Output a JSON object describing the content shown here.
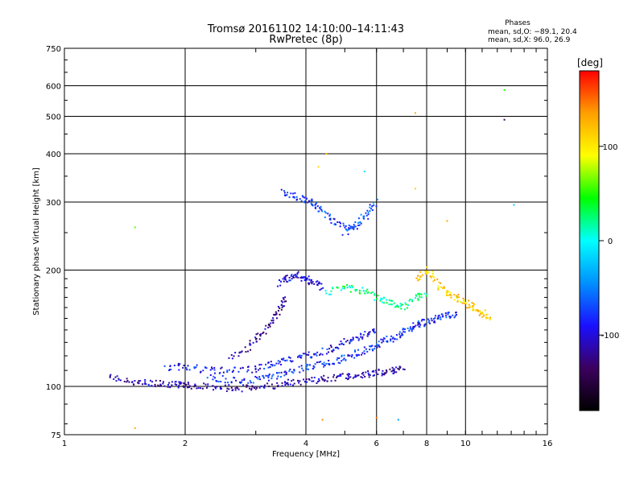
{
  "chart_data": {
    "type": "scatter",
    "title": "Tromsø 20161102 14:10:00–14:11:43",
    "subtitle": "RwPretec (8p)",
    "stats": {
      "heading": "Phases",
      "line_o": "mean, sd,O: −89.1, 20.4",
      "line_x": "mean, sd,X:  96.0, 26.9"
    },
    "xlabel": "Frequency [MHz]",
    "ylabel": "Stationary phase Virtual Height [km]",
    "x_scale": "log",
    "y_scale": "log",
    "xlim": [
      1,
      16
    ],
    "ylim": [
      75,
      750
    ],
    "x_ticks": [
      1,
      2,
      4,
      6,
      8,
      10,
      16
    ],
    "x_tick_labels": [
      "1",
      "2",
      "4",
      "6",
      "8",
      "10",
      "16"
    ],
    "y_ticks": [
      75,
      100,
      200,
      300,
      400,
      500,
      600,
      750
    ],
    "y_tick_labels": [
      "75",
      "100",
      "200",
      "300",
      "400",
      "500",
      "600",
      "750"
    ],
    "grid": true,
    "colorbar": {
      "label": "[deg]",
      "range": [
        -180,
        180
      ],
      "ticks": [
        100,
        0,
        -100
      ],
      "tick_labels": [
        "100",
        "0",
        "-100"
      ],
      "colors": [
        "#000000",
        "#3c0060",
        "#1a10ff",
        "#0090ff",
        "#00ffff",
        "#00ff00",
        "#ffff00",
        "#ffa000",
        "#ff0000"
      ]
    },
    "traces": [
      {
        "f": [
          1.3,
          1.45,
          1.6,
          1.75,
          1.9,
          2.0,
          2.2,
          2.5,
          2.8,
          3.1,
          3.5,
          3.8,
          4.2,
          4.6,
          5.0,
          5.4,
          5.8,
          6.2,
          6.6,
          7.0
        ],
        "h": [
          106,
          103,
          102,
          102,
          101,
          101,
          100,
          99,
          99,
          100,
          101,
          103,
          104,
          105,
          106,
          107,
          108,
          109,
          110,
          111
        ],
        "phase": -110
      },
      {
        "f": [
          1.8,
          2.0,
          2.3,
          2.6,
          3.0,
          3.3,
          3.6,
          4.0,
          4.4,
          4.8,
          5.2,
          5.6,
          6.0
        ],
        "h": [
          111,
          113,
          110,
          110,
          111,
          114,
          117,
          120,
          123,
          127,
          132,
          136,
          140
        ],
        "phase": -90
      },
      {
        "f": [
          2.3,
          2.6,
          3.0,
          3.3,
          3.6,
          4.0,
          4.4,
          4.8,
          5.2,
          5.6,
          6.0,
          6.4,
          6.8,
          7.2,
          7.6,
          8.0,
          8.5,
          9.0,
          9.5
        ],
        "h": [
          105,
          104,
          104,
          106,
          109,
          112,
          114,
          117,
          120,
          124,
          128,
          132,
          136,
          140,
          144,
          147,
          150,
          152,
          154
        ],
        "phase": -80
      },
      {
        "f": [
          2.6,
          2.9,
          3.1,
          3.3,
          3.45,
          3.55
        ],
        "h": [
          118,
          127,
          136,
          147,
          158,
          170
        ],
        "phase": -120
      },
      {
        "f": [
          3.45,
          3.6,
          3.8,
          4.0,
          4.2,
          4.4
        ],
        "h": [
          185,
          190,
          195,
          190,
          185,
          180
        ],
        "phase": -100
      },
      {
        "f": [
          3.5,
          3.8,
          4.1,
          4.3,
          4.6,
          5.0,
          5.4
        ],
        "h": [
          320,
          310,
          300,
          290,
          270,
          260,
          255
        ],
        "phase": -80
      },
      {
        "f": [
          5.0,
          5.4,
          5.7,
          6.0
        ],
        "h": [
          250,
          265,
          280,
          300
        ],
        "phase": -60
      },
      {
        "f": [
          4.5,
          5.0,
          5.5,
          6.0,
          6.5,
          7.0,
          7.5,
          8.0
        ],
        "h": [
          175,
          180,
          178,
          170,
          165,
          160,
          170,
          175
        ],
        "phase": 20
      },
      {
        "f": [
          7.5,
          8.0,
          8.5,
          9.0,
          9.5,
          10.0,
          10.5,
          11.0,
          11.5
        ],
        "h": [
          190,
          200,
          185,
          175,
          170,
          165,
          160,
          155,
          150
        ],
        "phase": 110
      }
    ],
    "points": [
      {
        "f": 1.5,
        "h": 258,
        "phase": 60
      },
      {
        "f": 1.5,
        "h": 78,
        "phase": 130
      },
      {
        "f": 12.5,
        "h": 585,
        "phase": 50
      },
      {
        "f": 12.5,
        "h": 490,
        "phase": -140
      },
      {
        "f": 13.2,
        "h": 295,
        "phase": -20
      },
      {
        "f": 7.5,
        "h": 510,
        "phase": 130
      },
      {
        "f": 4.3,
        "h": 370,
        "phase": 110
      },
      {
        "f": 4.5,
        "h": 400,
        "phase": 120
      },
      {
        "f": 5.6,
        "h": 360,
        "phase": -10
      },
      {
        "f": 7.5,
        "h": 325,
        "phase": 110
      },
      {
        "f": 9.0,
        "h": 268,
        "phase": 130
      },
      {
        "f": 6.0,
        "h": 83,
        "phase": 150
      },
      {
        "f": 6.8,
        "h": 82,
        "phase": -40
      },
      {
        "f": 4.4,
        "h": 82,
        "phase": 140
      }
    ]
  }
}
